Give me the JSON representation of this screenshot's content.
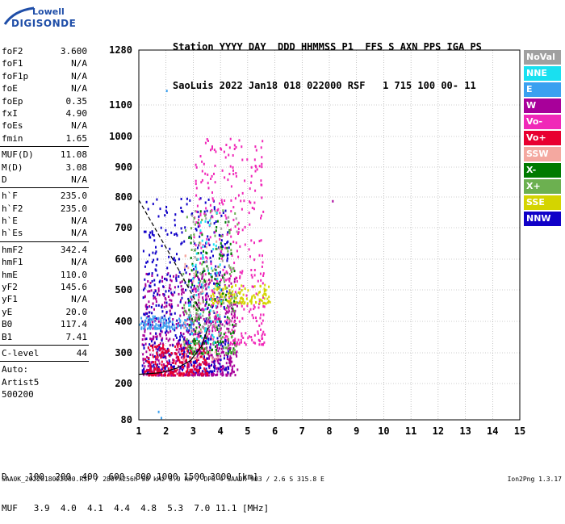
{
  "logo": {
    "line1": "Lowell",
    "line2": "DIGISONDE"
  },
  "header": {
    "line1": "Station YYYY DAY  DDD HHMMSS P1  FFS S AXN PPS IGA PS",
    "line2": "SaoLuis 2022 Jan18 018 022000 RSF   1 715 100 00- 11"
  },
  "params": [
    {
      "n": "foF2",
      "v": "3.600"
    },
    {
      "n": "foF1",
      "v": "N/A"
    },
    {
      "n": "foF1p",
      "v": "N/A"
    },
    {
      "n": "foE",
      "v": "N/A"
    },
    {
      "n": "foEp",
      "v": "0.35"
    },
    {
      "n": "fxI",
      "v": "4.90"
    },
    {
      "n": "foEs",
      "v": "N/A"
    },
    {
      "n": "fmin",
      "v": "1.65"
    },
    {
      "sep": true
    },
    {
      "n": "MUF(D)",
      "v": "11.08"
    },
    {
      "n": "M(D)",
      "v": "3.08"
    },
    {
      "n": "D",
      "v": "N/A"
    },
    {
      "sep": true
    },
    {
      "n": "h`F",
      "v": "235.0"
    },
    {
      "n": "h`F2",
      "v": "235.0"
    },
    {
      "n": "h`E",
      "v": "N/A"
    },
    {
      "n": "h`Es",
      "v": "N/A"
    },
    {
      "sep": true
    },
    {
      "n": "hmF2",
      "v": "342.4"
    },
    {
      "n": "hmF1",
      "v": "N/A"
    },
    {
      "n": "hmE",
      "v": "110.0"
    },
    {
      "n": "yF2",
      "v": "145.6"
    },
    {
      "n": "yF1",
      "v": "N/A"
    },
    {
      "n": "yE",
      "v": "20.0"
    },
    {
      "n": "B0",
      "v": "117.4"
    },
    {
      "n": "B1",
      "v": "7.41"
    },
    {
      "sep": true
    },
    {
      "n": "C-level",
      "v": "44"
    },
    {
      "sep": true
    },
    {
      "t": "Auto:"
    },
    {
      "t": "Artist5"
    },
    {
      "t": "500200"
    }
  ],
  "legend": [
    {
      "label": "NoVal",
      "color": "#a0a0a0"
    },
    {
      "label": "NNE",
      "color": "#19e0f0"
    },
    {
      "label": "E",
      "color": "#3aa0f0"
    },
    {
      "label": "W",
      "color": "#a8009a"
    },
    {
      "label": "Vo-",
      "color": "#f028b8"
    },
    {
      "label": "Vo+",
      "color": "#e80030"
    },
    {
      "label": "SSW",
      "color": "#f4a8a0"
    },
    {
      "label": "X-",
      "color": "#007a00"
    },
    {
      "label": "X+",
      "color": "#6cb050"
    },
    {
      "label": "SSE",
      "color": "#d4d400"
    },
    {
      "label": "NNW",
      "color": "#1000c8"
    }
  ],
  "bottom": {
    "line1": "D    100  200  400  600  800 1000 1500 3000 [km]",
    "line2": "MUF   3.9  4.0  4.1  4.4  4.8  5.3  7.0 11.1 [MHz]"
  },
  "footer": {
    "left": "SAA0K_2022018022000.RSF / 280fx256h 50 kHz 5.0 km / DPS-4 SAA0K 903 / 2.6 S 315.8 E",
    "right": "Ion2Png 1.3.17"
  },
  "chart_data": {
    "type": "scatter",
    "x_ticks": [
      "1",
      "2",
      "3",
      "4",
      "5",
      "6",
      "7",
      "8",
      "9",
      "10",
      "11",
      "12",
      "13",
      "14",
      "15"
    ],
    "y_ticks": [
      "80",
      "200",
      "300",
      "400",
      "500",
      "600",
      "700",
      "800",
      "900",
      "1000",
      "1100",
      "1280"
    ],
    "xlim": [
      1,
      15
    ],
    "ylim": [
      80,
      1280
    ],
    "y_tick_values": [
      80,
      200,
      300,
      400,
      500,
      600,
      700,
      800,
      900,
      1000,
      1100,
      1280
    ],
    "grid": true,
    "legend_placement": "right",
    "traces": [
      {
        "kind": "dashed",
        "points": [
          [
            1,
            790
          ],
          [
            2.5,
            560
          ],
          [
            3.3,
            430
          ]
        ]
      },
      {
        "kind": "solid",
        "points": [
          [
            1,
            230
          ],
          [
            1.8,
            235
          ],
          [
            2.4,
            250
          ],
          [
            2.9,
            275
          ],
          [
            3.3,
            320
          ],
          [
            3.55,
            380
          ]
        ]
      }
    ],
    "echo_regions": [
      {
        "color": "#a8009a",
        "x": [
          1.1,
          4.6
        ],
        "y": [
          230,
          560
        ],
        "n": 700
      },
      {
        "color": "#1000c8",
        "x": [
          1.1,
          4.3
        ],
        "y": [
          240,
          800
        ],
        "n": 450
      },
      {
        "color": "#f028b8",
        "x": [
          3.0,
          5.6
        ],
        "y": [
          330,
          1000
        ],
        "n": 380
      },
      {
        "color": "#e80030",
        "x": [
          1.2,
          3.5
        ],
        "y": [
          230,
          330
        ],
        "n": 230
      },
      {
        "color": "#d4d400",
        "x": [
          3.6,
          5.8
        ],
        "y": [
          460,
          520
        ],
        "n": 120
      },
      {
        "color": "#007a00",
        "x": [
          2.8,
          4.5
        ],
        "y": [
          300,
          760
        ],
        "n": 140
      },
      {
        "color": "#6cb050",
        "x": [
          2.6,
          4.6
        ],
        "y": [
          300,
          760
        ],
        "n": 120
      },
      {
        "color": "#3aa0f0",
        "x": [
          1.0,
          3.0
        ],
        "y": [
          380,
          420
        ],
        "n": 100
      },
      {
        "color": "#19e0f0",
        "x": [
          2.8,
          4.0
        ],
        "y": [
          330,
          760
        ],
        "n": 70
      },
      {
        "color": "#f4a8a0",
        "x": [
          2.6,
          4.0
        ],
        "y": [
          280,
          700
        ],
        "n": 50
      },
      {
        "color": "#a0a0a0",
        "x": [
          2.8,
          4.6
        ],
        "y": [
          380,
          760
        ],
        "n": 60
      }
    ],
    "isolated_points": [
      {
        "x": 2.0,
        "y": 1150,
        "color": "#3aa0f0"
      },
      {
        "x": 8.1,
        "y": 790,
        "color": "#a8009a"
      },
      {
        "x": 1.7,
        "y": 110,
        "color": "#3aa0f0"
      },
      {
        "x": 1.8,
        "y": 90,
        "color": "#3aa0f0"
      }
    ]
  }
}
